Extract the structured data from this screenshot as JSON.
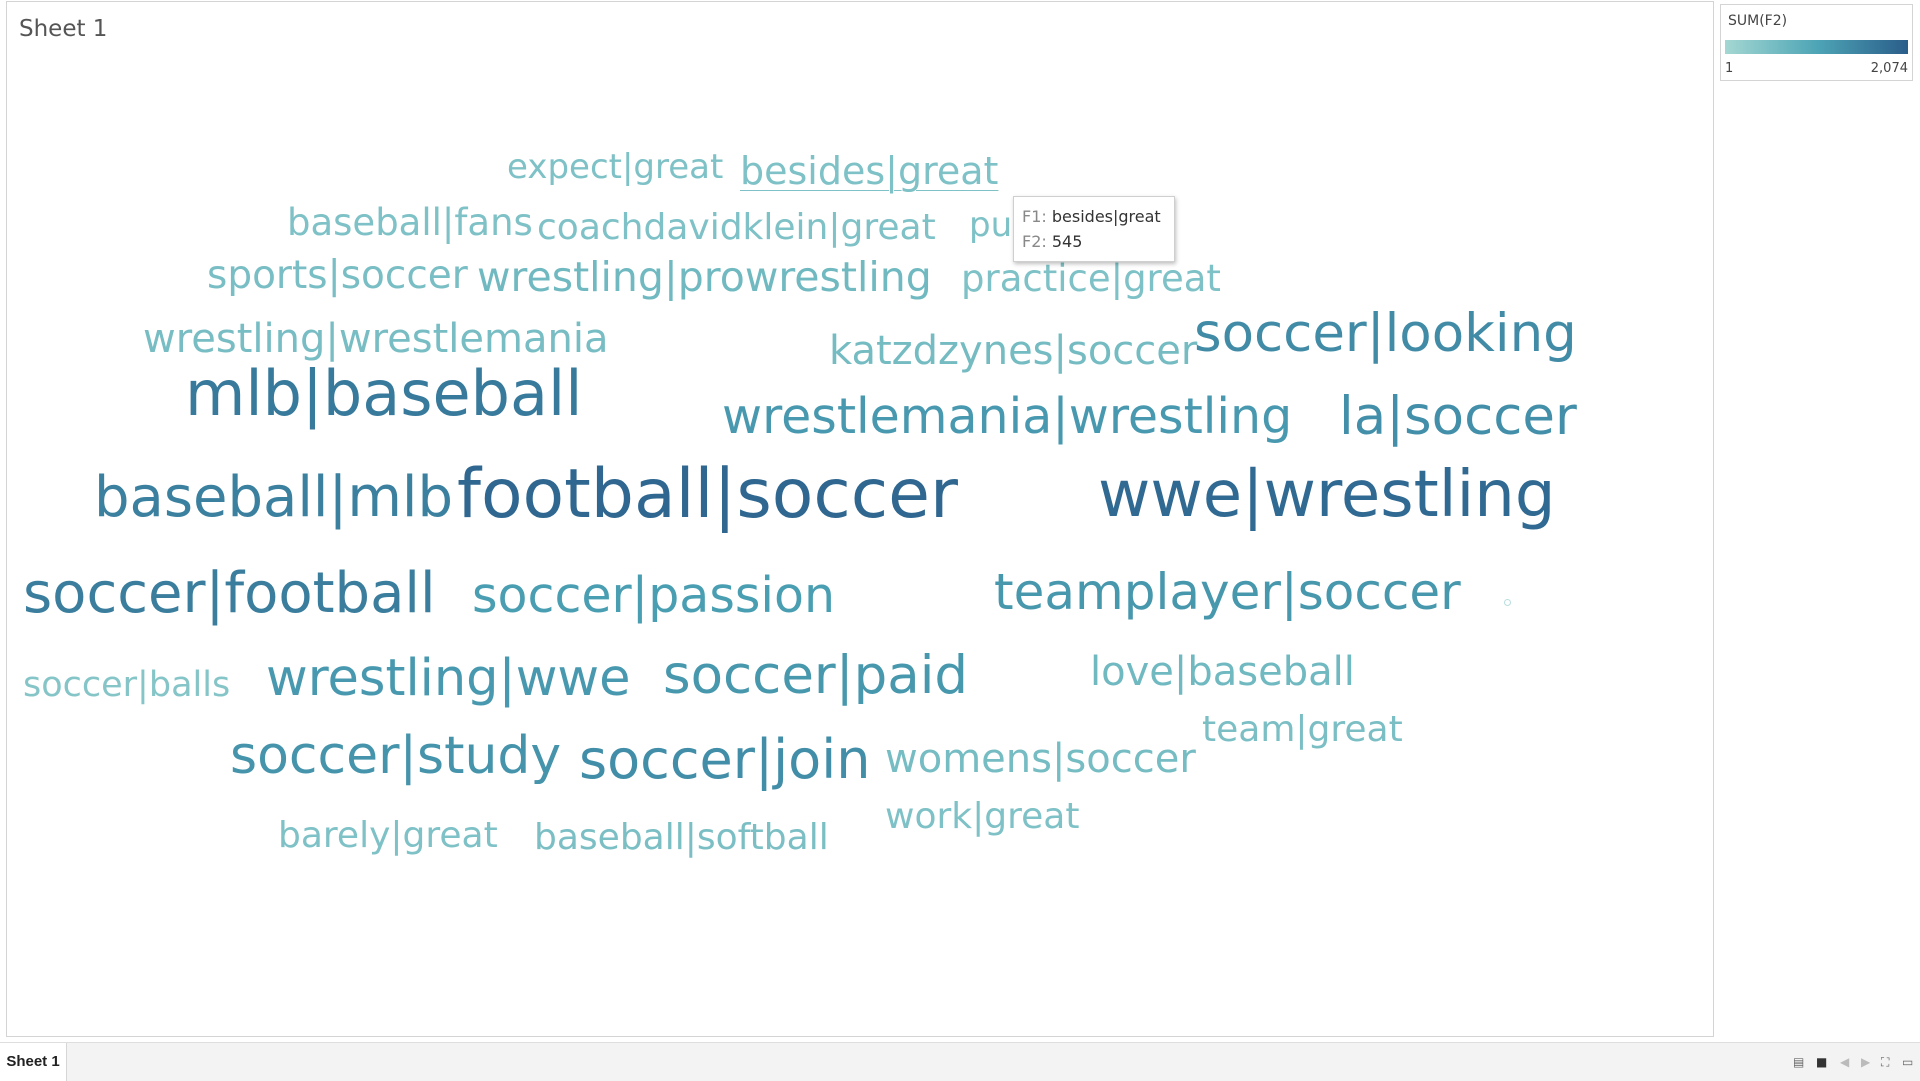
{
  "sheet_title": "Sheet 1",
  "tab_label": "Sheet 1",
  "legend": {
    "title": "SUM(F2)",
    "min_label": "1",
    "max_label": "2,074"
  },
  "tooltip": {
    "f1_key": "F1:",
    "f1_value": "besides|great",
    "f2_key": "F2:",
    "f2_value": "545"
  },
  "chart_data": {
    "type": "word-cloud",
    "title": "Sheet 1",
    "size_and_color_measure": "SUM(F2)",
    "value_range": [
      1,
      2074
    ],
    "color_scale": {
      "low": "#a4d7d2",
      "mid": "#4ea5b6",
      "high": "#2a5d8a"
    },
    "words": [
      {
        "text": "expect|great"
      },
      {
        "text": "besides|great",
        "value": 545
      },
      {
        "text": "put|great"
      },
      {
        "text": "baseball|fans"
      },
      {
        "text": "coachdavidklein|great"
      },
      {
        "text": "sports|soccer"
      },
      {
        "text": "wrestling|prowrestling"
      },
      {
        "text": "practice|great"
      },
      {
        "text": "wrestling|wrestlemania"
      },
      {
        "text": "katzdzynes|soccer"
      },
      {
        "text": "soccer|looking"
      },
      {
        "text": "mlb|baseball"
      },
      {
        "text": "wrestlemania|wrestling"
      },
      {
        "text": "la|soccer"
      },
      {
        "text": "baseball|mlb"
      },
      {
        "text": "football|soccer"
      },
      {
        "text": "wwe|wrestling"
      },
      {
        "text": "soccer|football"
      },
      {
        "text": "soccer|passion"
      },
      {
        "text": "teamplayer|soccer"
      },
      {
        "text": "soccer|balls"
      },
      {
        "text": "wrestling|wwe"
      },
      {
        "text": "soccer|paid"
      },
      {
        "text": "love|baseball"
      },
      {
        "text": "team|great"
      },
      {
        "text": "soccer|study"
      },
      {
        "text": "soccer|join"
      },
      {
        "text": "womens|soccer"
      },
      {
        "text": "work|great"
      },
      {
        "text": "barely|great"
      },
      {
        "text": "baseball|softball"
      }
    ]
  }
}
